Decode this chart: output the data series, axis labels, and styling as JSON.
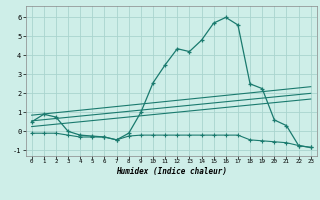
{
  "xlabel": "Humidex (Indice chaleur)",
  "xlim": [
    -0.5,
    23.5
  ],
  "ylim": [
    -1.3,
    6.6
  ],
  "xticks": [
    0,
    1,
    2,
    3,
    4,
    5,
    6,
    7,
    8,
    9,
    10,
    11,
    12,
    13,
    14,
    15,
    16,
    17,
    18,
    19,
    20,
    21,
    22,
    23
  ],
  "yticks": [
    -1,
    0,
    1,
    2,
    3,
    4,
    5,
    6
  ],
  "bg_color": "#ceeee8",
  "grid_color": "#aad4ce",
  "line_color": "#1a7a6e",
  "curve1_x": [
    0,
    1,
    2,
    3,
    4,
    5,
    6,
    7,
    8,
    9,
    10,
    11,
    12,
    13,
    14,
    15,
    16,
    17,
    18,
    19,
    20,
    21,
    22,
    23
  ],
  "curve1_y": [
    0.5,
    0.9,
    0.75,
    0.0,
    -0.2,
    -0.25,
    -0.3,
    -0.45,
    -0.1,
    1.0,
    2.55,
    3.5,
    4.35,
    4.2,
    4.8,
    5.7,
    6.0,
    5.6,
    2.5,
    2.25,
    0.6,
    0.3,
    -0.75,
    -0.85
  ],
  "curve2_x": [
    0,
    23
  ],
  "curve2_y": [
    0.85,
    2.35
  ],
  "curve3_x": [
    0,
    23
  ],
  "curve3_y": [
    0.55,
    2.0
  ],
  "curve4_x": [
    0,
    23
  ],
  "curve4_y": [
    0.25,
    1.7
  ],
  "curve5_x": [
    0,
    1,
    2,
    3,
    4,
    5,
    6,
    7,
    8,
    9,
    10,
    11,
    12,
    13,
    14,
    15,
    16,
    17,
    18,
    19,
    20,
    21,
    22,
    23
  ],
  "curve5_y": [
    -0.1,
    -0.1,
    -0.1,
    -0.2,
    -0.3,
    -0.3,
    -0.3,
    -0.45,
    -0.25,
    -0.2,
    -0.2,
    -0.2,
    -0.2,
    -0.2,
    -0.2,
    -0.2,
    -0.2,
    -0.2,
    -0.45,
    -0.5,
    -0.55,
    -0.6,
    -0.75,
    -0.85
  ]
}
